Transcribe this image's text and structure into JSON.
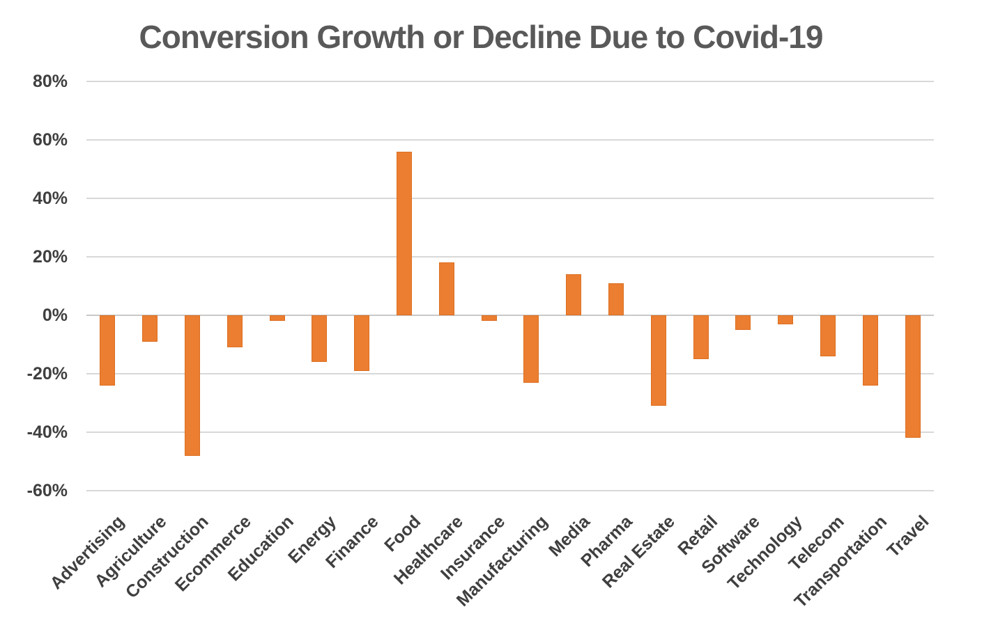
{
  "chart_data": {
    "type": "bar",
    "title": "Conversion Growth or Decline Due to Covid-19",
    "unit": "%",
    "categories": [
      "Advertising",
      "Agriculture",
      "Construction",
      "Ecommerce",
      "Education",
      "Energy",
      "Finance",
      "Food",
      "Healthcare",
      "Insurance",
      "Manufacturing",
      "Media",
      "Pharma",
      "Real Estate",
      "Retail",
      "Software",
      "Technology",
      "Telecom",
      "Transportation",
      "Travel"
    ],
    "values": [
      -24,
      -9,
      -48,
      -11,
      -2,
      -16,
      -19,
      56,
      18,
      -2,
      -23,
      14,
      11,
      -31,
      -15,
      -5,
      -3,
      -14,
      -24,
      -42
    ],
    "xlabel": "",
    "ylabel": "",
    "ylim": [
      -60,
      80
    ],
    "ytick_step": 20,
    "ytick_labels": [
      "80%",
      "60%",
      "40%",
      "20%",
      "0%",
      "-20%",
      "-40%",
      "-60%"
    ],
    "grid": true,
    "legend": "none",
    "colors": {
      "bar_fill": "#EB7E31",
      "bar_edge": "#DC6F22",
      "gridline": "#D8D8D8",
      "zero_line": "#C9C9C9",
      "axis_label": "#3F3F3F",
      "title": "#595959"
    }
  }
}
